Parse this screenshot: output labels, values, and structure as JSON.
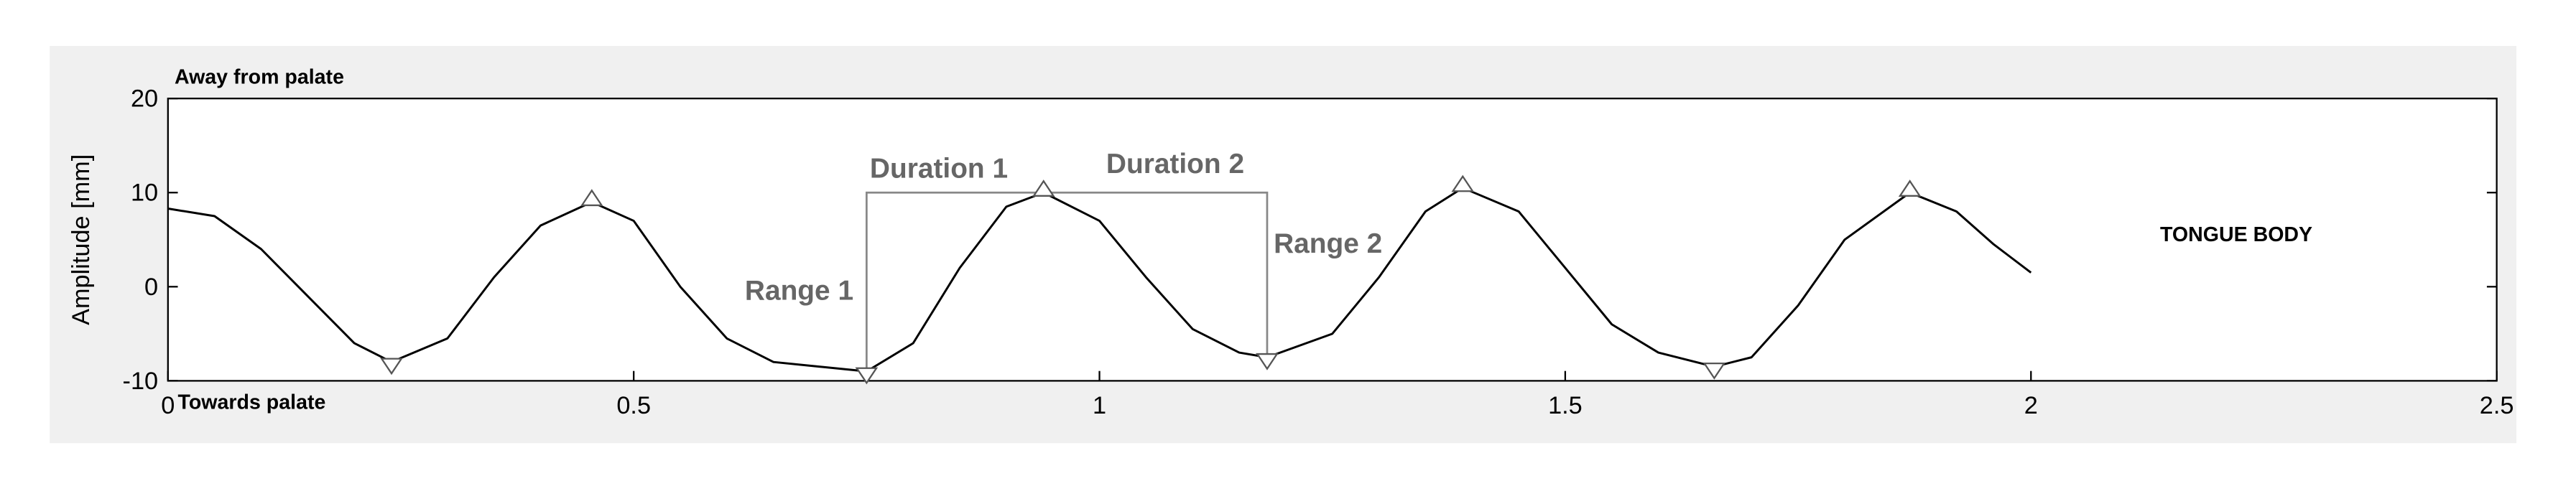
{
  "chart_data": {
    "type": "line",
    "ylabel": "Amplitude [mm]",
    "top_label": "Away from palate",
    "bottom_label": "Towards palate",
    "side_label": "TONGUE BODY",
    "annotations": {
      "duration_1": "Duration 1",
      "duration_2": "Duration 2",
      "range_1": "Range 1",
      "range_2": "Range 2"
    },
    "xlim": [
      0,
      2.5
    ],
    "xticks": [
      0,
      0.5,
      1,
      1.5,
      2,
      2.5
    ],
    "ylim": [
      -10,
      20
    ],
    "yticks": [
      -10,
      0,
      10,
      20
    ],
    "x": [
      0,
      0.05,
      0.1,
      0.15,
      0.2,
      0.24,
      0.3,
      0.35,
      0.4,
      0.455,
      0.5,
      0.55,
      0.6,
      0.65,
      0.7,
      0.75,
      0.8,
      0.85,
      0.9,
      0.94,
      1.0,
      1.05,
      1.1,
      1.15,
      1.18,
      1.25,
      1.3,
      1.35,
      1.39,
      1.45,
      1.5,
      1.55,
      1.6,
      1.66,
      1.7,
      1.75,
      1.8,
      1.87,
      1.92,
      1.96,
      2.0
    ],
    "series": [
      {
        "color": "#000000",
        "values": [
          8.3,
          7.5,
          4,
          -1,
          -6,
          -8,
          -5.5,
          1,
          6.5,
          9,
          7,
          0,
          -5.5,
          -8,
          -8.5,
          -9,
          -6,
          2,
          8.5,
          10,
          7,
          1,
          -4.5,
          -7,
          -7.5,
          -5,
          1,
          8,
          10.5,
          8,
          2,
          -4,
          -7,
          -8.5,
          -7.5,
          -2,
          5,
          10,
          8,
          4.5,
          1.5
        ]
      }
    ],
    "peaks": {
      "x": [
        0.455,
        0.94,
        1.39,
        1.87
      ],
      "values": [
        9,
        10,
        10.5,
        10
      ]
    },
    "troughs": {
      "x": [
        0.24,
        0.75,
        1.18,
        1.66
      ],
      "values": [
        -8,
        -9,
        -7.5,
        -8.5
      ]
    }
  }
}
